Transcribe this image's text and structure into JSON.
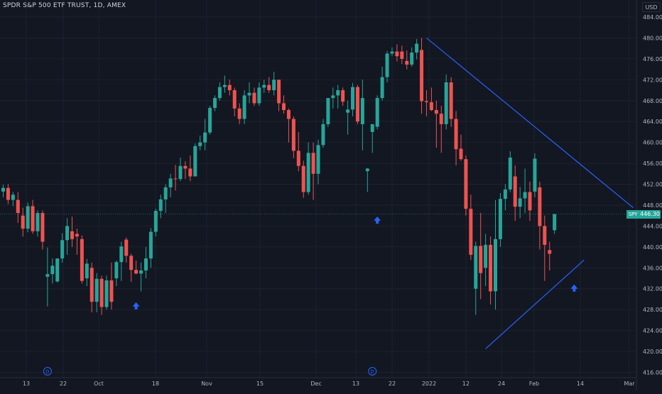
{
  "header": {
    "symbol_title": "SPDR S&P 500 ETF TRUST, 1D, AMEX",
    "currency": "USD"
  },
  "price_tag": {
    "symbol": "SPY",
    "value": "446.30"
  },
  "colors": {
    "background": "#131722",
    "grid": "#1e222d",
    "up": "#26a69a",
    "down": "#ef5350",
    "trendline": "#2962ff",
    "axis_text": "#b2b5be"
  },
  "chart_data": {
    "type": "candlestick",
    "y_axis_ticks": [
      "416.00",
      "420.00",
      "424.00",
      "428.00",
      "432.00",
      "436.00",
      "440.00",
      "444.00",
      "448.00",
      "452.00",
      "456.00",
      "460.00",
      "464.00",
      "468.00",
      "472.00",
      "476.00",
      "480.00",
      "484.00"
    ],
    "ylim": [
      414,
      486
    ],
    "x_axis_labels": [
      "13",
      "22",
      "Oct",
      "18",
      "Nov",
      "15",
      "Dec",
      "13",
      "22",
      "2022",
      "12",
      "24",
      "Feb",
      "14",
      "Mar"
    ],
    "grid": true,
    "candles": [
      [
        450.6,
        451.9,
        449.5,
        451.3
      ],
      [
        451.3,
        452.0,
        448.2,
        449.0
      ],
      [
        449.0,
        450.5,
        447.8,
        450.0
      ],
      [
        449.0,
        450.5,
        444.6,
        446.5
      ],
      [
        446.0,
        447.5,
        442.0,
        443.5
      ],
      [
        443.5,
        448.5,
        442.8,
        447.8
      ],
      [
        447.8,
        449.0,
        442.5,
        443.0
      ],
      [
        443.0,
        447.0,
        442.0,
        446.5
      ],
      [
        446.5,
        447.0,
        439.5,
        441.0
      ],
      [
        434.3,
        439.9,
        428.6,
        434.8
      ],
      [
        434.8,
        437.8,
        433.0,
        436.4
      ],
      [
        433.4,
        437.8,
        433.2,
        437.8
      ],
      [
        437.8,
        442.6,
        437.0,
        441.3
      ],
      [
        441.3,
        445.5,
        438.5,
        444.0
      ],
      [
        443.0,
        445.8,
        440.0,
        441.5
      ],
      [
        442.5,
        443.5,
        438.5,
        442.0
      ],
      [
        441.5,
        442.2,
        433.0,
        433.5
      ],
      [
        434.0,
        437.7,
        432.5,
        436.8
      ],
      [
        436.0,
        437.0,
        427.5,
        429.5
      ],
      [
        429.5,
        435.0,
        427.5,
        433.9
      ],
      [
        433.9,
        434.5,
        427.0,
        428.5
      ],
      [
        428.5,
        434.5,
        428.0,
        433.6
      ],
      [
        433.6,
        437.0,
        428.0,
        429.5
      ],
      [
        434.0,
        437.4,
        432.5,
        437.1
      ],
      [
        437.1,
        441.0,
        433.5,
        440.1
      ],
      [
        441.4,
        441.8,
        437.0,
        438.3
      ],
      [
        438.3,
        438.7,
        433.3,
        435.6
      ],
      [
        435.6,
        437.4,
        434.8,
        434.9
      ],
      [
        434.9,
        437.0,
        431.5,
        435.5
      ],
      [
        435.5,
        440.0,
        434.0,
        437.8
      ],
      [
        437.8,
        443.6,
        436.0,
        442.9
      ],
      [
        442.9,
        447.3,
        442.0,
        446.9
      ],
      [
        446.9,
        450.0,
        445.5,
        449.1
      ],
      [
        449.1,
        452.0,
        446.5,
        451.4
      ],
      [
        451.4,
        454.0,
        449.5,
        453.1
      ],
      [
        453.1,
        455.7,
        450.8,
        453.0
      ],
      [
        453.0,
        457.1,
        452.6,
        455.5
      ],
      [
        455.5,
        456.4,
        453.0,
        455.0
      ],
      [
        455.0,
        457.5,
        452.6,
        453.5
      ],
      [
        453.5,
        459.8,
        453.5,
        459.3
      ],
      [
        459.3,
        461.3,
        458.5,
        460.0
      ],
      [
        460.0,
        464.5,
        458.5,
        461.9
      ],
      [
        461.9,
        467.0,
        461.5,
        466.6
      ],
      [
        466.6,
        469.0,
        466.0,
        468.5
      ],
      [
        468.5,
        471.5,
        468.0,
        470.6
      ],
      [
        470.6,
        472.8,
        469.5,
        471.0
      ],
      [
        471.0,
        472.0,
        469.0,
        470.0
      ],
      [
        470.0,
        470.5,
        465.0,
        466.5
      ],
      [
        466.5,
        467.5,
        463.5,
        464.5
      ],
      [
        464.5,
        470.0,
        463.5,
        469.0
      ],
      [
        469.0,
        471.5,
        467.5,
        469.5
      ],
      [
        469.5,
        470.5,
        467.0,
        467.5
      ],
      [
        467.5,
        471.5,
        467.0,
        470.5
      ],
      [
        470.5,
        472.0,
        469.5,
        471.0
      ],
      [
        471.0,
        472.5,
        469.5,
        470.0
      ],
      [
        470.0,
        473.5,
        469.0,
        472.0
      ],
      [
        472.0,
        472.0,
        466.0,
        467.5
      ],
      [
        467.5,
        469.0,
        465.5,
        466.2
      ],
      [
        466.2,
        466.5,
        460.0,
        464.5
      ],
      [
        464.5,
        465.0,
        457.0,
        458.4
      ],
      [
        458.4,
        462.0,
        454.5,
        455.5
      ],
      [
        455.5,
        456.5,
        449.4,
        450.5
      ],
      [
        450.5,
        460.0,
        450.0,
        458.0
      ],
      [
        458.0,
        460.0,
        449.0,
        454.0
      ],
      [
        454.0,
        460.5,
        452.0,
        459.5
      ],
      [
        459.5,
        464.5,
        459.0,
        463.5
      ],
      [
        463.5,
        468.5,
        463.0,
        468.5
      ],
      [
        468.5,
        470.5,
        466.5,
        469.0
      ],
      [
        469.0,
        471.0,
        466.5,
        470.0
      ],
      [
        470.0,
        470.5,
        467.0,
        467.8
      ],
      [
        465.7,
        468.0,
        461.5,
        466.3
      ],
      [
        466.3,
        471.4,
        465.0,
        470.6
      ],
      [
        470.6,
        471.0,
        463.5,
        464.0
      ],
      [
        463.5,
        472.0,
        458.5,
        468.5
      ],
      [
        454.5,
        455.1,
        450.5,
        455.0
      ],
      [
        462.0,
        463.5,
        458.0,
        463.5
      ],
      [
        463.0,
        469.0,
        462.5,
        468.5
      ],
      [
        468.5,
        474.5,
        468.0,
        472.5
      ],
      [
        472.5,
        477.5,
        471.5,
        477.0
      ],
      [
        477.0,
        478.2,
        476.5,
        477.4
      ],
      [
        477.4,
        478.8,
        475.5,
        476.5
      ],
      [
        477.4,
        478.5,
        475.0,
        476.0
      ],
      [
        475.6,
        477.6,
        474.0,
        474.9
      ],
      [
        474.9,
        478.2,
        474.5,
        477.2
      ],
      [
        477.2,
        479.8,
        475.9,
        478.9
      ],
      [
        477.7,
        480.0,
        465.5,
        467.9
      ],
      [
        467.9,
        470.0,
        465.0,
        467.7
      ],
      [
        467.7,
        470.5,
        466.0,
        466.2
      ],
      [
        466.2,
        468.0,
        459.0,
        465.5
      ],
      [
        465.5,
        467.0,
        458.0,
        463.5
      ],
      [
        463.5,
        473.0,
        462.5,
        471.5
      ],
      [
        471.5,
        472.5,
        463.0,
        464.5
      ],
      [
        464.5,
        466.0,
        455.6,
        458.7
      ],
      [
        458.8,
        461.5,
        456.5,
        456.8
      ],
      [
        456.8,
        457.5,
        446.0,
        447.3
      ],
      [
        447.3,
        450.0,
        437.5,
        438.5
      ],
      [
        432.0,
        441.0,
        427.0,
        440.2
      ],
      [
        440.2,
        446.5,
        430.0,
        435.0
      ],
      [
        436.0,
        442.5,
        432.5,
        440.4
      ],
      [
        440.4,
        442.0,
        429.0,
        431.5
      ],
      [
        431.5,
        449.0,
        428.0,
        441.5
      ],
      [
        441.5,
        450.3,
        440.0,
        449.2
      ],
      [
        449.2,
        452.0,
        447.0,
        451.0
      ],
      [
        451.0,
        458.3,
        450.5,
        457.1
      ],
      [
        453.5,
        455.6,
        445.0,
        447.7
      ],
      [
        447.7,
        451.5,
        445.5,
        449.3
      ],
      [
        449.3,
        455.0,
        446.5,
        450.5
      ],
      [
        450.5,
        452.5,
        445.0,
        447.0
      ],
      [
        450.6,
        457.9,
        449.5,
        456.9
      ],
      [
        451.4,
        452.5,
        439.5,
        444.0
      ],
      [
        444.0,
        446.0,
        433.5,
        440.4
      ],
      [
        439.4,
        441.0,
        435.5,
        438.7
      ],
      [
        443.2,
        446.3,
        442.5,
        446.3
      ]
    ],
    "trendlines": [
      {
        "from": {
          "candle": 86,
          "value": 480.0
        },
        "to": {
          "candle": 128,
          "value": 447.5
        }
      },
      {
        "from": {
          "candle": 98,
          "value": 420.5
        },
        "to": {
          "candle": 118,
          "value": 437.5
        }
      }
    ],
    "signal_arrows": [
      {
        "candle": 27,
        "value": 428.6
      },
      {
        "candle": 76,
        "value": 445.0
      },
      {
        "candle": 116,
        "value": 432.0
      }
    ],
    "dividend_markers": [
      {
        "label": "D",
        "candle": 9
      },
      {
        "label": "D",
        "candle": 75
      }
    ],
    "last_price_line": 446.3
  }
}
